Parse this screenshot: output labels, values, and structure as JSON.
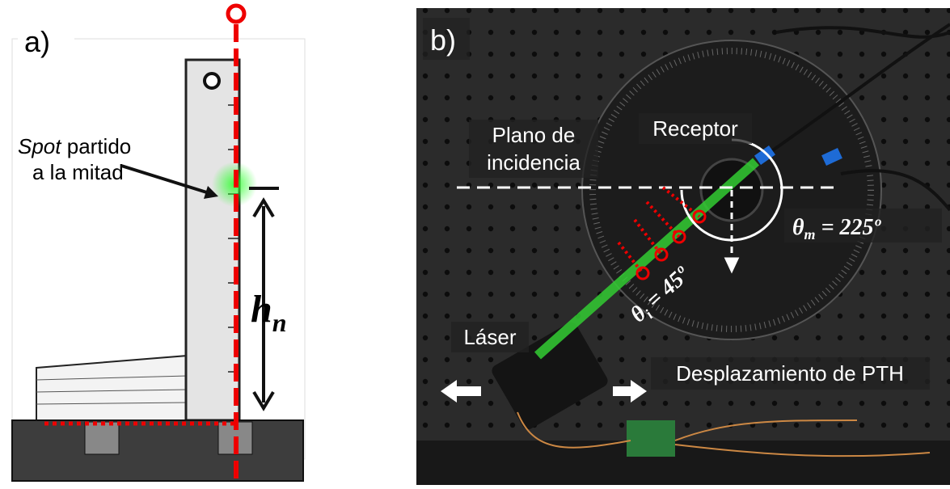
{
  "panel_a": {
    "label": "a)",
    "spot_emphasis": "Spot",
    "spot_rest": "partido",
    "spot_line2": "a la mitad",
    "height_symbol": "h",
    "height_subscript": "n"
  },
  "panel_b": {
    "label": "b)",
    "plane_line1": "Plano de",
    "plane_line2": "incidencia",
    "receiver": "Receptor",
    "theta_m_symbol": "θ",
    "theta_m_subscript": "m",
    "theta_m_rest": " = 225º",
    "theta_i_symbol": "θ",
    "theta_i_subscript": "i",
    "theta_i_rest": " = 45º",
    "laser": "Láser",
    "displacement": "Desplazamiento de PTH"
  }
}
